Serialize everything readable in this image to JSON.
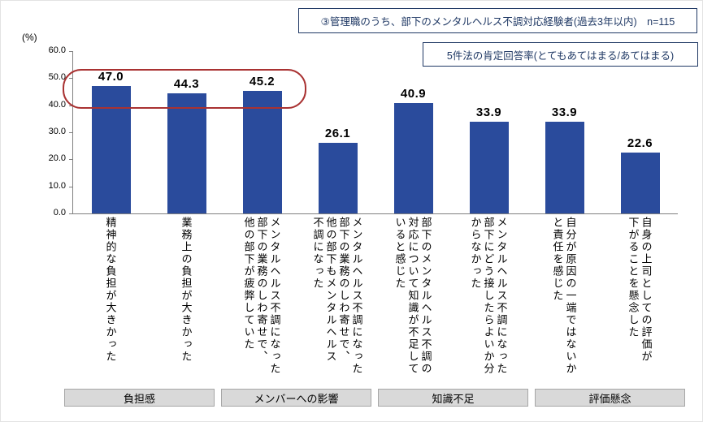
{
  "notes": {
    "sample": "③管理職のうち、部下のメンタルヘルス不調対応経験者(過去3年以内)　n=115",
    "method": "5件法の肯定回答率(とてもあてはまる/あてはまる)"
  },
  "chart_data": {
    "type": "bar",
    "title": "",
    "xlabel": "",
    "ylabel": "(%)",
    "ylim": [
      0,
      60
    ],
    "yticks": [
      0,
      10,
      20,
      30,
      40,
      50,
      60
    ],
    "grid": false,
    "legend": "none",
    "bar_color": "#2a4b9c",
    "categories": [
      "精神的な負担が大きかった",
      "業務上の負担が大きかった",
      "メンタルヘルス不調になった\n部下の業務のしわ寄せで、\n他の部下が疲弊していた",
      "メンタルヘルス不調になった\n部下の業務のしわ寄せで、\n他の部下もメンタルヘルス\n不調になった",
      "部下のメンタルヘルス不調の\n対応について知識が不足して\nいると感じた",
      "メンタルヘルス不調になった\n部下にどう接したらよいか分\nからなかった",
      "自分が原因の一端ではないか\nと責任を感じた",
      "自身の上司としての評価が\n下がることを懸念した"
    ],
    "values": [
      47.0,
      44.3,
      45.2,
      26.1,
      40.9,
      33.9,
      33.9,
      22.6
    ],
    "groups": [
      {
        "label": "負担感",
        "bars": 2
      },
      {
        "label": "メンバーへの影響",
        "bars": 2
      },
      {
        "label": "知識不足",
        "bars": 2
      },
      {
        "label": "評価懸念",
        "bars": 2
      }
    ],
    "highlight": {
      "bars": [
        0,
        1,
        2
      ],
      "color": "#a93232"
    }
  }
}
